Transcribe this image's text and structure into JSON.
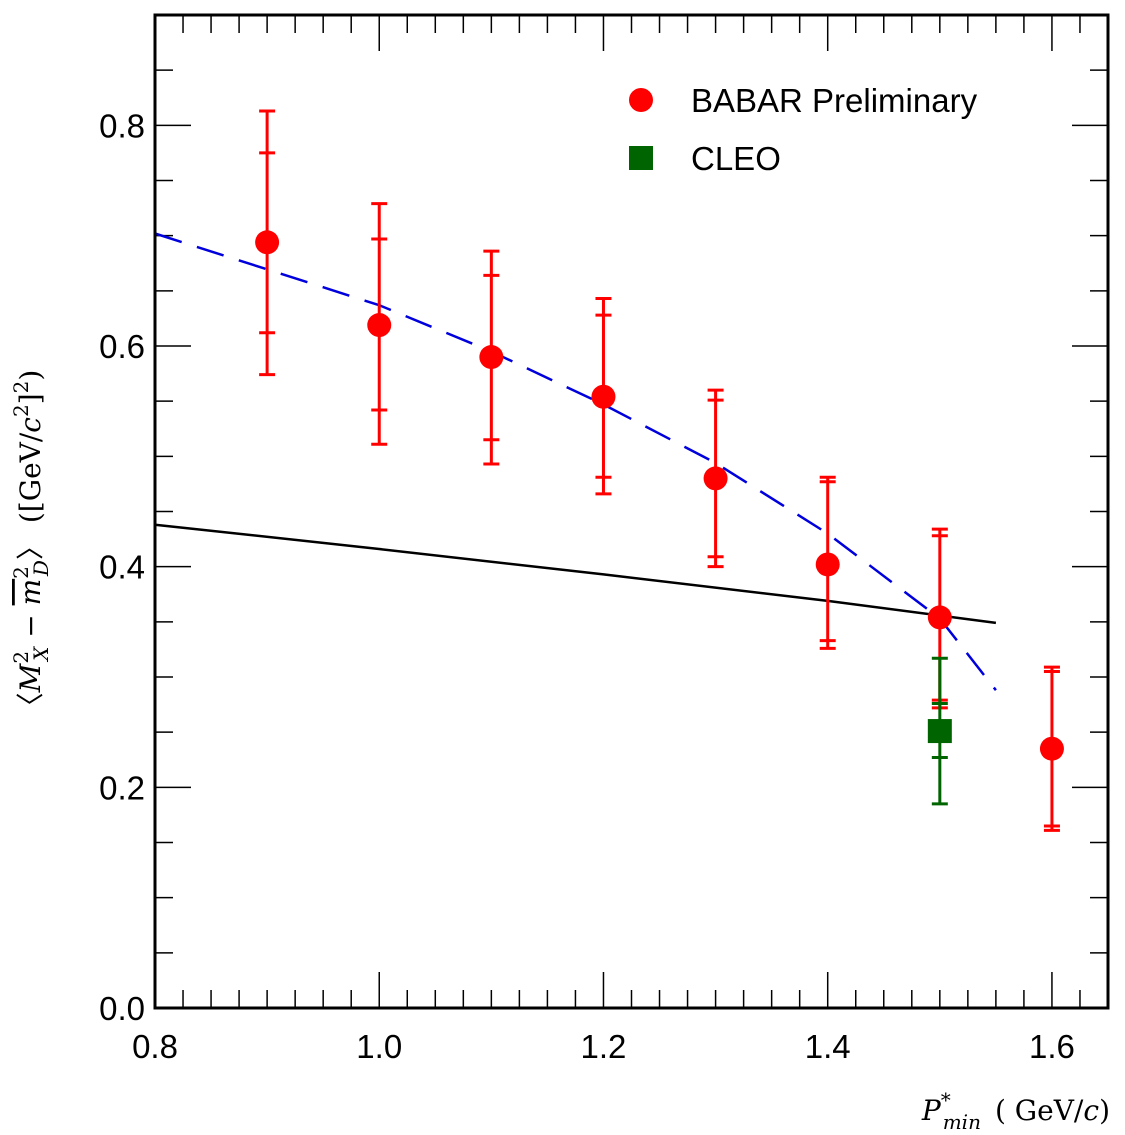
{
  "chart_data": {
    "type": "scatter",
    "xlabel": "P*min ( GeV/c)",
    "ylabel": "〈M²X − m̄²D〉 ([GeV/c²]²)",
    "xlim": [
      0.8,
      1.65
    ],
    "ylim": [
      0.0,
      0.9
    ],
    "x_ticks": [
      "0.8",
      "1.0",
      "1.2",
      "1.4",
      "1.6"
    ],
    "y_ticks": [
      "0.0",
      "0.2",
      "0.4",
      "0.6",
      "0.8"
    ],
    "legend_position": "top-right",
    "series": [
      {
        "name": "BABAR Preliminary",
        "marker": "circle",
        "color": "#ff0000",
        "points": [
          {
            "x": 0.9,
            "y": 0.694,
            "stat_lo": 0.612,
            "stat_hi": 0.775,
            "tot_lo": 0.574,
            "tot_hi": 0.813
          },
          {
            "x": 1.0,
            "y": 0.619,
            "stat_lo": 0.542,
            "stat_hi": 0.697,
            "tot_lo": 0.511,
            "tot_hi": 0.729
          },
          {
            "x": 1.1,
            "y": 0.59,
            "stat_lo": 0.515,
            "stat_hi": 0.664,
            "tot_lo": 0.493,
            "tot_hi": 0.686
          },
          {
            "x": 1.2,
            "y": 0.554,
            "stat_lo": 0.481,
            "stat_hi": 0.628,
            "tot_lo": 0.466,
            "tot_hi": 0.643
          },
          {
            "x": 1.3,
            "y": 0.48,
            "stat_lo": 0.409,
            "stat_hi": 0.551,
            "tot_lo": 0.4,
            "tot_hi": 0.56
          },
          {
            "x": 1.4,
            "y": 0.402,
            "stat_lo": 0.333,
            "stat_hi": 0.477,
            "tot_lo": 0.326,
            "tot_hi": 0.481
          },
          {
            "x": 1.5,
            "y": 0.354,
            "stat_lo": 0.279,
            "stat_hi": 0.428,
            "tot_lo": 0.272,
            "tot_hi": 0.434
          },
          {
            "x": 1.6,
            "y": 0.235,
            "stat_lo": 0.165,
            "stat_hi": 0.305,
            "tot_lo": 0.161,
            "tot_hi": 0.309
          }
        ]
      },
      {
        "name": "CLEO",
        "marker": "square",
        "color": "#006400",
        "points": [
          {
            "x": 1.5,
            "y": 0.251,
            "stat_lo": 0.227,
            "stat_hi": 0.276,
            "tot_lo": 0.185,
            "tot_hi": 0.317
          }
        ]
      }
    ],
    "curves": [
      {
        "style": "solid",
        "color": "#000000",
        "points": [
          [
            0.8,
            0.438
          ],
          [
            1.0,
            0.416
          ],
          [
            1.2,
            0.393
          ],
          [
            1.4,
            0.369
          ],
          [
            1.55,
            0.349
          ]
        ]
      },
      {
        "style": "dashed",
        "color": "#0000dd",
        "points": [
          [
            0.8,
            0.702
          ],
          [
            1.0,
            0.637
          ],
          [
            1.1,
            0.595
          ],
          [
            1.2,
            0.547
          ],
          [
            1.3,
            0.494
          ],
          [
            1.4,
            0.43
          ],
          [
            1.5,
            0.353
          ],
          [
            1.55,
            0.288
          ]
        ]
      }
    ]
  }
}
